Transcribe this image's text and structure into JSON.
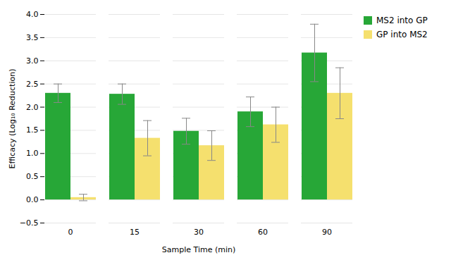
{
  "chart_data": {
    "type": "bar",
    "categories": [
      "0",
      "15",
      "30",
      "60",
      "90"
    ],
    "series": [
      {
        "name": "MS2 into GP",
        "color": "#27A737",
        "values": [
          2.3,
          2.28,
          1.48,
          1.9,
          3.17
        ],
        "errors": [
          0.2,
          0.22,
          0.28,
          0.32,
          0.62
        ]
      },
      {
        "name": "GP into MS2",
        "color": "#F5E06E",
        "values": [
          0.05,
          1.33,
          1.17,
          1.62,
          2.3
        ],
        "errors": [
          0.07,
          0.38,
          0.32,
          0.38,
          0.55
        ]
      }
    ],
    "xlabel": "Sample Time (min)",
    "ylabel": "Efficacy (Log₁₀ Reduction)",
    "ylim": [
      -0.5,
      4.0
    ],
    "yticks": [
      {
        "value": -0.5,
        "label": "−0.5"
      },
      {
        "value": 0,
        "label": "0.0"
      },
      0.5,
      {
        "value": 1,
        "label": "1.0"
      },
      1.5,
      {
        "value": 2,
        "label": "2.0"
      },
      2.5,
      {
        "value": 3,
        "label": "3.0"
      },
      3.5,
      {
        "value": 4,
        "label": "4.0"
      }
    ],
    "grid": true,
    "legend": "right"
  }
}
